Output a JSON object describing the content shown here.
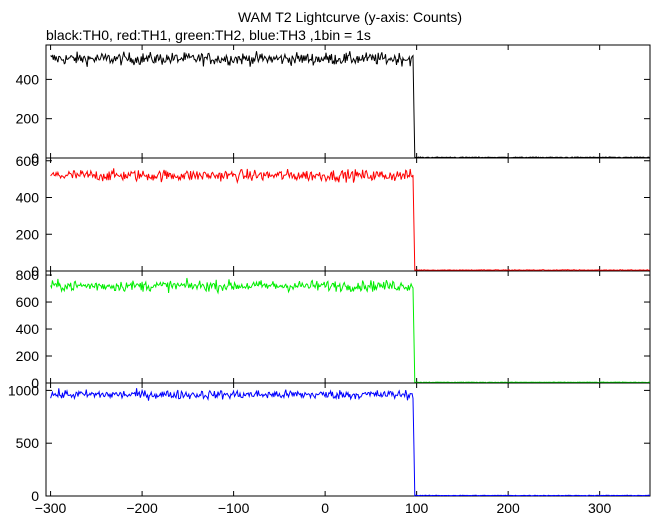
{
  "title": "WAM T2 Lightcurve (y-axis: Counts)",
  "subtitle": "black:TH0, red:TH1, green:TH2, blue:TH3 ,1bin = 1s",
  "chart_data": {
    "type": "line",
    "title": "WAM T2 Lightcurve (y-axis: Counts)",
    "subtitle": "black:TH0, red:TH1, green:TH2, blue:TH3 ,1bin = 1s",
    "xlabel": "",
    "ylabel": "",
    "xlim": [
      -305,
      355
    ],
    "x_ticks": [
      -300,
      -200,
      -100,
      0,
      100,
      200,
      300
    ],
    "x_tick_labels": [
      "−300",
      "−200",
      "−100",
      "0",
      "100",
      "200",
      "300"
    ],
    "grid": false,
    "layout": "four vertically stacked panels sharing the x-axis",
    "series": [
      {
        "name": "TH0",
        "color": "#000000",
        "ylim": [
          0,
          575
        ],
        "y_ticks": [
          0,
          200,
          400
        ],
        "y_tick_labels": [
          "0",
          "200",
          "400"
        ],
        "pre_level": 505,
        "pre_noise": 22,
        "post_level": 3,
        "drop_x": 97,
        "x_start": -300,
        "x_end": 355
      },
      {
        "name": "TH1",
        "color": "#ff0000",
        "ylim": [
          0,
          615
        ],
        "y_ticks": [
          0,
          200,
          400,
          600
        ],
        "y_tick_labels": [
          "0",
          "200",
          "400",
          "600"
        ],
        "pre_level": 520,
        "pre_noise": 22,
        "post_level": 5,
        "drop_x": 97,
        "x_start": -300,
        "x_end": 355
      },
      {
        "name": "TH2",
        "color": "#00ee00",
        "ylim": [
          0,
          830
        ],
        "y_ticks": [
          0,
          200,
          400,
          600,
          800
        ],
        "y_tick_labels": [
          "0",
          "200",
          "400",
          "600",
          "800"
        ],
        "pre_level": 720,
        "pre_noise": 28,
        "post_level": 5,
        "drop_x": 97,
        "x_start": -300,
        "x_end": 355
      },
      {
        "name": "TH3",
        "color": "#0000ff",
        "ylim": [
          0,
          1070
        ],
        "y_ticks": [
          0,
          500,
          1000
        ],
        "y_tick_labels": [
          "0",
          "500",
          "1000"
        ],
        "pre_level": 960,
        "pre_noise": 30,
        "post_level": 5,
        "drop_x": 97,
        "x_start": -300,
        "x_end": 355
      }
    ]
  }
}
